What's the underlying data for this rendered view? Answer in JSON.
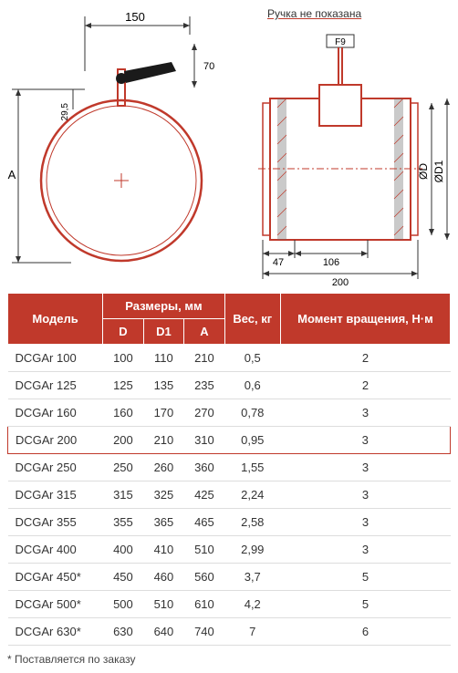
{
  "diagram": {
    "note": "Ручка не показана",
    "dimensions": {
      "width_label": "150",
      "offset_label": "29,5",
      "height_label": "70",
      "vert_label": "A",
      "f9_label": "F9",
      "od_label": "ØD",
      "od1_label": "ØD1",
      "d47": "47",
      "d106": "106",
      "d200": "200"
    },
    "stroke_color": "#c0392b",
    "dim_color": "#333333"
  },
  "table": {
    "header_bg": "#c0392b",
    "highlight_color": "#c0392b",
    "headers": {
      "model": "Модель",
      "dims": "Размеры, мм",
      "D": "D",
      "D1": "D1",
      "A": "A",
      "weight": "Вес, кг",
      "torque": "Момент вращения, Н·м"
    },
    "rows": [
      {
        "model": "DCGAr 100",
        "D": "100",
        "D1": "110",
        "A": "210",
        "weight": "0,5",
        "torque": "2",
        "highlighted": false
      },
      {
        "model": "DCGAr 125",
        "D": "125",
        "D1": "135",
        "A": "235",
        "weight": "0,6",
        "torque": "2",
        "highlighted": false
      },
      {
        "model": "DCGAr 160",
        "D": "160",
        "D1": "170",
        "A": "270",
        "weight": "0,78",
        "torque": "3",
        "highlighted": false
      },
      {
        "model": "DCGAr 200",
        "D": "200",
        "D1": "210",
        "A": "310",
        "weight": "0,95",
        "torque": "3",
        "highlighted": true
      },
      {
        "model": "DCGAr 250",
        "D": "250",
        "D1": "260",
        "A": "360",
        "weight": "1,55",
        "torque": "3",
        "highlighted": false
      },
      {
        "model": "DCGAr 315",
        "D": "315",
        "D1": "325",
        "A": "425",
        "weight": "2,24",
        "torque": "3",
        "highlighted": false
      },
      {
        "model": "DCGAr 355",
        "D": "355",
        "D1": "365",
        "A": "465",
        "weight": "2,58",
        "torque": "3",
        "highlighted": false
      },
      {
        "model": "DCGAr 400",
        "D": "400",
        "D1": "410",
        "A": "510",
        "weight": "2,99",
        "torque": "3",
        "highlighted": false
      },
      {
        "model": "DCGAr 450*",
        "D": "450",
        "D1": "460",
        "A": "560",
        "weight": "3,7",
        "torque": "5",
        "highlighted": false
      },
      {
        "model": "DCGAr 500*",
        "D": "500",
        "D1": "510",
        "A": "610",
        "weight": "4,2",
        "torque": "5",
        "highlighted": false
      },
      {
        "model": "DCGAr 630*",
        "D": "630",
        "D1": "640",
        "A": "740",
        "weight": "7",
        "torque": "6",
        "highlighted": false
      }
    ]
  },
  "footnote": "* Поставляется по заказу"
}
